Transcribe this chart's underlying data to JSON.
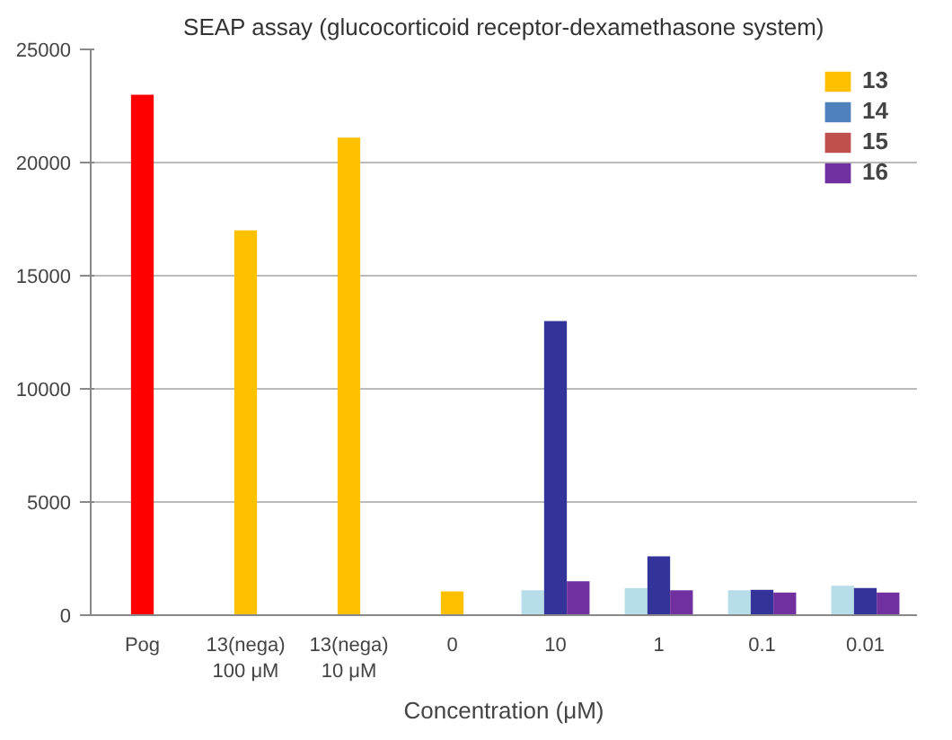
{
  "chart_data": {
    "type": "bar",
    "title": "SEAP assay (glucocorticoid receptor-dexamethasone system)",
    "xlabel": "Concentration (μM)",
    "categories": [
      "Pog",
      "13(nega)\n100 μM",
      "13(nega)\n10 μM",
      "0",
      "10",
      "1",
      "0.1",
      "0.01"
    ],
    "series": [
      {
        "color": "#ff0000",
        "values": [
          23000,
          null,
          null,
          null,
          null,
          null,
          null,
          null
        ]
      },
      {
        "name": "13",
        "color": "#ffc000",
        "values": [
          null,
          17000,
          21100,
          1050,
          null,
          null,
          null,
          null
        ]
      },
      {
        "color": "#b7dde8",
        "values": [
          null,
          null,
          null,
          null,
          1100,
          1200,
          1100,
          1300
        ]
      },
      {
        "color": "#333399",
        "values": [
          null,
          null,
          null,
          null,
          13000,
          2600,
          1120,
          1200
        ]
      },
      {
        "name": "14",
        "color": "#4f81bd",
        "values": [
          null,
          null,
          null,
          null,
          null,
          null,
          null,
          null
        ]
      },
      {
        "name": "15",
        "color": "#c0504d",
        "values": [
          null,
          null,
          null,
          null,
          null,
          null,
          null,
          null
        ]
      },
      {
        "name": "16",
        "color": "#7030a0",
        "values": [
          null,
          null,
          null,
          null,
          1500,
          1100,
          1000,
          1000
        ]
      }
    ],
    "ylim": [
      0,
      25000
    ],
    "yticks": [
      0,
      5000,
      10000,
      15000,
      20000,
      25000
    ],
    "grid": "y",
    "legend": "top right"
  }
}
